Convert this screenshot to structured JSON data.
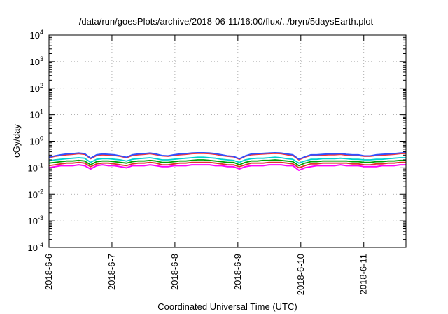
{
  "chart_data": {
    "type": "line",
    "title": "/data/run/goesPlots/archive/2018-06-11/16:00/flux/../bryn/5daysEarth.plot",
    "xlabel": "Coordinated Universal Time (UTC)",
    "ylabel": "cGy/day",
    "y_scale": "log",
    "ylim": [
      0.0001,
      10000
    ],
    "xlim": [
      0,
      5.67
    ],
    "y_ticks": [
      {
        "base": "10",
        "exp": "4"
      },
      {
        "base": "10",
        "exp": "3"
      },
      {
        "base": "10",
        "exp": "2"
      },
      {
        "base": "10",
        "exp": "1"
      },
      {
        "base": "10",
        "exp": "0"
      },
      {
        "base": "10",
        "exp": "-1"
      },
      {
        "base": "10",
        "exp": "-2"
      },
      {
        "base": "10",
        "exp": "-3"
      },
      {
        "base": "10",
        "exp": "-4"
      }
    ],
    "x_ticks": [
      "2018-6-6",
      "2018-6-7",
      "2018-6-8",
      "2018-6-9",
      "2018-6-10",
      "2018-6-11"
    ],
    "x_tick_positions": [
      0,
      1,
      2,
      3,
      4,
      5
    ],
    "grid": true,
    "series_colors": [
      "#ff00ff",
      "#e0302a",
      "#00a000",
      "#00d0d0",
      "#ff3030",
      "#3050ff"
    ],
    "series": [
      {
        "color": "#ff00ff",
        "values": [
          0.1,
          0.11,
          0.12,
          0.12,
          0.12,
          0.13,
          0.12,
          0.09,
          0.12,
          0.13,
          0.12,
          0.12,
          0.11,
          0.1,
          0.12,
          0.12,
          0.12,
          0.13,
          0.12,
          0.11,
          0.11,
          0.12,
          0.12,
          0.12,
          0.13,
          0.13,
          0.13,
          0.13,
          0.12,
          0.12,
          0.11,
          0.11,
          0.09,
          0.11,
          0.12,
          0.12,
          0.12,
          0.13,
          0.13,
          0.13,
          0.12,
          0.12,
          0.08,
          0.1,
          0.11,
          0.12,
          0.12,
          0.12,
          0.12,
          0.13,
          0.12,
          0.12,
          0.12,
          0.11,
          0.11,
          0.11,
          0.12,
          0.12,
          0.12,
          0.13,
          0.13
        ]
      },
      {
        "color": "#e0302a",
        "values": [
          0.12,
          0.13,
          0.14,
          0.15,
          0.15,
          0.16,
          0.15,
          0.11,
          0.14,
          0.15,
          0.15,
          0.14,
          0.13,
          0.12,
          0.14,
          0.15,
          0.15,
          0.16,
          0.15,
          0.13,
          0.13,
          0.14,
          0.15,
          0.15,
          0.16,
          0.16,
          0.16,
          0.16,
          0.15,
          0.14,
          0.13,
          0.13,
          0.11,
          0.13,
          0.15,
          0.15,
          0.15,
          0.16,
          0.16,
          0.16,
          0.15,
          0.14,
          0.1,
          0.12,
          0.14,
          0.14,
          0.15,
          0.15,
          0.15,
          0.15,
          0.15,
          0.14,
          0.14,
          0.13,
          0.13,
          0.14,
          0.14,
          0.15,
          0.15,
          0.16,
          0.16
        ]
      },
      {
        "color": "#00a000",
        "values": [
          0.15,
          0.16,
          0.17,
          0.18,
          0.18,
          0.19,
          0.18,
          0.13,
          0.17,
          0.18,
          0.18,
          0.17,
          0.16,
          0.15,
          0.17,
          0.18,
          0.18,
          0.19,
          0.18,
          0.16,
          0.16,
          0.17,
          0.18,
          0.18,
          0.19,
          0.2,
          0.2,
          0.19,
          0.18,
          0.17,
          0.16,
          0.16,
          0.13,
          0.16,
          0.18,
          0.18,
          0.19,
          0.19,
          0.2,
          0.19,
          0.18,
          0.17,
          0.12,
          0.15,
          0.17,
          0.17,
          0.18,
          0.18,
          0.18,
          0.18,
          0.18,
          0.17,
          0.17,
          0.16,
          0.16,
          0.17,
          0.17,
          0.18,
          0.18,
          0.19,
          0.19
        ]
      },
      {
        "color": "#00d0d0",
        "values": [
          0.18,
          0.2,
          0.21,
          0.22,
          0.23,
          0.24,
          0.23,
          0.16,
          0.21,
          0.22,
          0.22,
          0.21,
          0.2,
          0.18,
          0.21,
          0.22,
          0.23,
          0.24,
          0.22,
          0.2,
          0.2,
          0.21,
          0.22,
          0.23,
          0.24,
          0.25,
          0.25,
          0.24,
          0.23,
          0.21,
          0.2,
          0.19,
          0.16,
          0.2,
          0.22,
          0.23,
          0.23,
          0.24,
          0.25,
          0.24,
          0.22,
          0.21,
          0.15,
          0.18,
          0.21,
          0.21,
          0.22,
          0.22,
          0.22,
          0.23,
          0.22,
          0.21,
          0.21,
          0.2,
          0.2,
          0.21,
          0.21,
          0.22,
          0.23,
          0.24,
          0.24
        ]
      },
      {
        "color": "#ff3030",
        "values": [
          0.24,
          0.27,
          0.29,
          0.31,
          0.32,
          0.34,
          0.32,
          0.22,
          0.29,
          0.31,
          0.3,
          0.29,
          0.27,
          0.24,
          0.29,
          0.31,
          0.32,
          0.34,
          0.31,
          0.28,
          0.27,
          0.29,
          0.31,
          0.32,
          0.34,
          0.35,
          0.35,
          0.34,
          0.32,
          0.29,
          0.27,
          0.26,
          0.21,
          0.27,
          0.31,
          0.32,
          0.33,
          0.34,
          0.35,
          0.34,
          0.31,
          0.29,
          0.2,
          0.25,
          0.29,
          0.29,
          0.3,
          0.31,
          0.31,
          0.32,
          0.3,
          0.29,
          0.29,
          0.27,
          0.27,
          0.29,
          0.3,
          0.31,
          0.32,
          0.34,
          0.35
        ]
      },
      {
        "color": "#3050ff",
        "values": [
          0.25,
          0.28,
          0.31,
          0.33,
          0.34,
          0.36,
          0.34,
          0.23,
          0.31,
          0.33,
          0.32,
          0.31,
          0.28,
          0.25,
          0.31,
          0.33,
          0.34,
          0.36,
          0.33,
          0.29,
          0.28,
          0.31,
          0.33,
          0.34,
          0.36,
          0.37,
          0.37,
          0.36,
          0.34,
          0.31,
          0.28,
          0.27,
          0.22,
          0.28,
          0.33,
          0.34,
          0.35,
          0.36,
          0.37,
          0.36,
          0.33,
          0.31,
          0.21,
          0.26,
          0.31,
          0.31,
          0.32,
          0.33,
          0.33,
          0.34,
          0.32,
          0.31,
          0.31,
          0.28,
          0.28,
          0.31,
          0.32,
          0.33,
          0.34,
          0.36,
          0.37
        ]
      }
    ]
  }
}
